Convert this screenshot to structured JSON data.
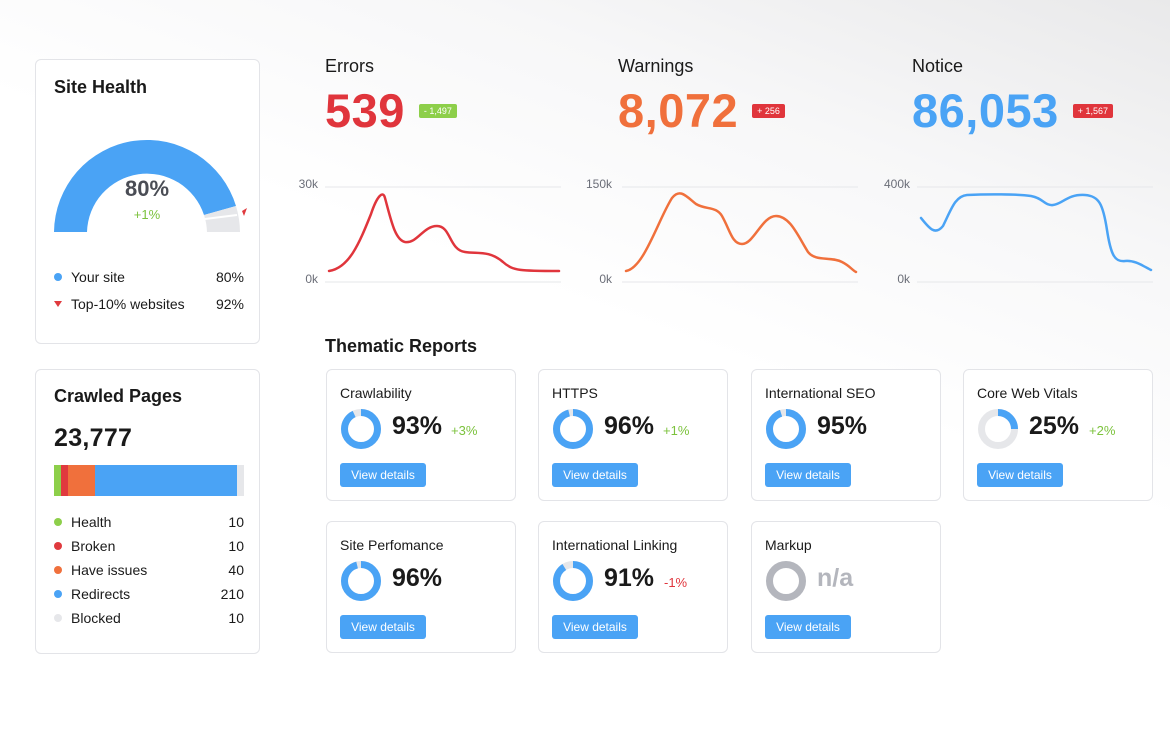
{
  "site_health": {
    "title": "Site Health",
    "score": "80%",
    "change": "+1%",
    "score_value": 80,
    "top10_value": 92,
    "legend": [
      {
        "label": "Your site",
        "value": "80%",
        "color": "#4aa3f5"
      },
      {
        "label": "Top-10% websites",
        "value": "92%",
        "color": "#e03a3e"
      }
    ]
  },
  "crawled_pages": {
    "title": "Crawled Pages",
    "total": "23,777",
    "items": [
      {
        "label": "Health",
        "value": "10",
        "color": "#8dcf4a"
      },
      {
        "label": "Broken",
        "value": "10",
        "color": "#e03a3e"
      },
      {
        "label": "Have issues",
        "value": "40",
        "color": "#f0703c"
      },
      {
        "label": "Redirects",
        "value": "210",
        "color": "#4aa3f5"
      },
      {
        "label": "Blocked",
        "value": "10",
        "color": "#e6e7ea"
      }
    ]
  },
  "metrics": [
    {
      "label": "Errors",
      "value": "539",
      "badge": "- 1,497",
      "color": "#e0353c",
      "badge_color": "#8dcf4a",
      "y_max_label": "30k",
      "y_min_label": "0k"
    },
    {
      "label": "Warnings",
      "value": "8,072",
      "badge": "+ 256",
      "color": "#f0703c",
      "badge_color": "#e0353c",
      "y_max_label": "150k",
      "y_min_label": "0k"
    },
    {
      "label": "Notice",
      "value": "86,053",
      "badge": "+ 1,567",
      "color": "#4aa3f5",
      "badge_color": "#e0353c",
      "y_max_label": "400k",
      "y_min_label": "0k"
    }
  ],
  "thematic": {
    "title": "Thematic Reports",
    "button_label": "View details",
    "reports": [
      {
        "name": "Crawlability",
        "value": "93%",
        "delta": "+3%",
        "delta_color": "#7cc23d",
        "fill": 0.93
      },
      {
        "name": "HTTPS",
        "value": "96%",
        "delta": "+1%",
        "delta_color": "#7cc23d",
        "fill": 0.96
      },
      {
        "name": "International SEO",
        "value": "95%",
        "delta": "",
        "delta_color": "#7cc23d",
        "fill": 0.95
      },
      {
        "name": "Core Web Vitals",
        "value": "25%",
        "delta": "+2%",
        "delta_color": "#7cc23d",
        "fill": 0.25
      },
      {
        "name": "Site Perfomance",
        "value": "96%",
        "delta": "",
        "delta_color": "#7cc23d",
        "fill": 0.96
      },
      {
        "name": "International Linking",
        "value": "91%",
        "delta": "-1%",
        "delta_color": "#e0353c",
        "fill": 0.91
      },
      {
        "name": "Markup",
        "value": "n/a",
        "delta": "",
        "delta_color": "#7cc23d",
        "fill": 0
      }
    ]
  }
}
